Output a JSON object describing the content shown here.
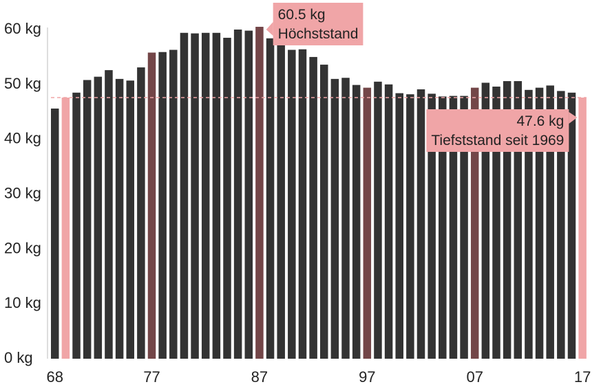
{
  "chart_data": {
    "type": "bar",
    "title": "",
    "xlabel": "",
    "ylabel": "",
    "ylim": [
      0,
      60
    ],
    "y_tick_labels": [
      "0 kg",
      "10 kg",
      "20 kg",
      "30 kg",
      "40 kg",
      "50 kg",
      "60 kg"
    ],
    "x_tick_labels": [
      "68",
      "77",
      "87",
      "97",
      "07",
      "17"
    ],
    "categories": [
      "1968",
      "1969",
      "1970",
      "1971",
      "1972",
      "1973",
      "1974",
      "1975",
      "1976",
      "1977",
      "1978",
      "1979",
      "1980",
      "1981",
      "1982",
      "1983",
      "1984",
      "1985",
      "1986",
      "1987",
      "1988",
      "1989",
      "1990",
      "1991",
      "1992",
      "1993",
      "1994",
      "1995",
      "1996",
      "1997",
      "1998",
      "1999",
      "2000",
      "2001",
      "2002",
      "2003",
      "2004",
      "2005",
      "2006",
      "2007",
      "2008",
      "2009",
      "2010",
      "2011",
      "2012",
      "2013",
      "2014",
      "2015",
      "2016",
      "2017"
    ],
    "values": [
      45.6,
      47.6,
      48.5,
      50.8,
      51.4,
      52.6,
      51.0,
      50.7,
      53.1,
      55.8,
      55.9,
      56.3,
      59.4,
      59.3,
      59.4,
      59.4,
      58.5,
      60.0,
      59.8,
      60.5,
      58.4,
      57.9,
      56.3,
      56.4,
      55.0,
      53.6,
      51.0,
      51.2,
      49.9,
      49.4,
      50.5,
      50.0,
      48.4,
      48.2,
      49.1,
      48.3,
      47.8,
      47.9,
      47.9,
      49.4,
      50.3,
      49.6,
      50.6,
      50.6,
      49.0,
      49.4,
      49.8,
      48.8,
      48.5,
      47.6
    ],
    "colors": {
      "default": "#333333",
      "extreme": "#f0a5a7",
      "highlight": "#734648",
      "reference_line": "#f0a5a7",
      "callout_bg": "#f0a5a7"
    },
    "extreme_years": [
      "1969",
      "2017"
    ],
    "highlight_years": [
      "1977",
      "1987",
      "1997",
      "2007"
    ],
    "reference_line": {
      "value": 47.6
    },
    "annotations": [
      {
        "year": "1987",
        "lines": [
          "60.5 kg",
          "Höchststand"
        ]
      },
      {
        "year": "2017",
        "lines": [
          "47.6 kg",
          "Tiefststand seit 1969"
        ]
      }
    ]
  }
}
